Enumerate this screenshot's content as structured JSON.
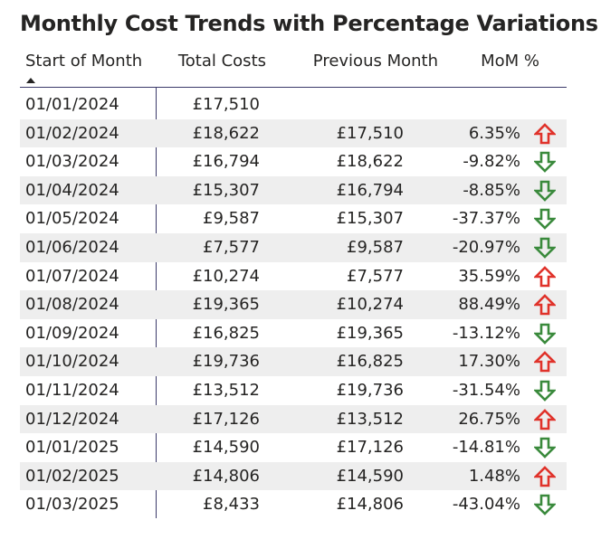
{
  "title": "Monthly Cost Trends with Percentage Variations",
  "columns": {
    "date": "Start of Month",
    "total": "Total Costs",
    "prev": "Previous Month",
    "mom": "MoM %"
  },
  "colors": {
    "up": "#e0322a",
    "down": "#3a8a3c"
  },
  "rows": [
    {
      "date": "01/01/2024",
      "total": "£17,510",
      "prev": "",
      "mom": "",
      "trend": ""
    },
    {
      "date": "01/02/2024",
      "total": "£18,622",
      "prev": "£17,510",
      "mom": "6.35%",
      "trend": "up"
    },
    {
      "date": "01/03/2024",
      "total": "£16,794",
      "prev": "£18,622",
      "mom": "-9.82%",
      "trend": "down"
    },
    {
      "date": "01/04/2024",
      "total": "£15,307",
      "prev": "£16,794",
      "mom": "-8.85%",
      "trend": "down"
    },
    {
      "date": "01/05/2024",
      "total": "£9,587",
      "prev": "£15,307",
      "mom": "-37.37%",
      "trend": "down"
    },
    {
      "date": "01/06/2024",
      "total": "£7,577",
      "prev": "£9,587",
      "mom": "-20.97%",
      "trend": "down"
    },
    {
      "date": "01/07/2024",
      "total": "£10,274",
      "prev": "£7,577",
      "mom": "35.59%",
      "trend": "up"
    },
    {
      "date": "01/08/2024",
      "total": "£19,365",
      "prev": "£10,274",
      "mom": "88.49%",
      "trend": "up"
    },
    {
      "date": "01/09/2024",
      "total": "£16,825",
      "prev": "£19,365",
      "mom": "-13.12%",
      "trend": "down"
    },
    {
      "date": "01/10/2024",
      "total": "£19,736",
      "prev": "£16,825",
      "mom": "17.30%",
      "trend": "up"
    },
    {
      "date": "01/11/2024",
      "total": "£13,512",
      "prev": "£19,736",
      "mom": "-31.54%",
      "trend": "down"
    },
    {
      "date": "01/12/2024",
      "total": "£17,126",
      "prev": "£13,512",
      "mom": "26.75%",
      "trend": "up"
    },
    {
      "date": "01/01/2025",
      "total": "£14,590",
      "prev": "£17,126",
      "mom": "-14.81%",
      "trend": "down"
    },
    {
      "date": "01/02/2025",
      "total": "£14,806",
      "prev": "£14,590",
      "mom": "1.48%",
      "trend": "up"
    },
    {
      "date": "01/03/2025",
      "total": "£8,433",
      "prev": "£14,806",
      "mom": "-43.04%",
      "trend": "down"
    }
  ]
}
